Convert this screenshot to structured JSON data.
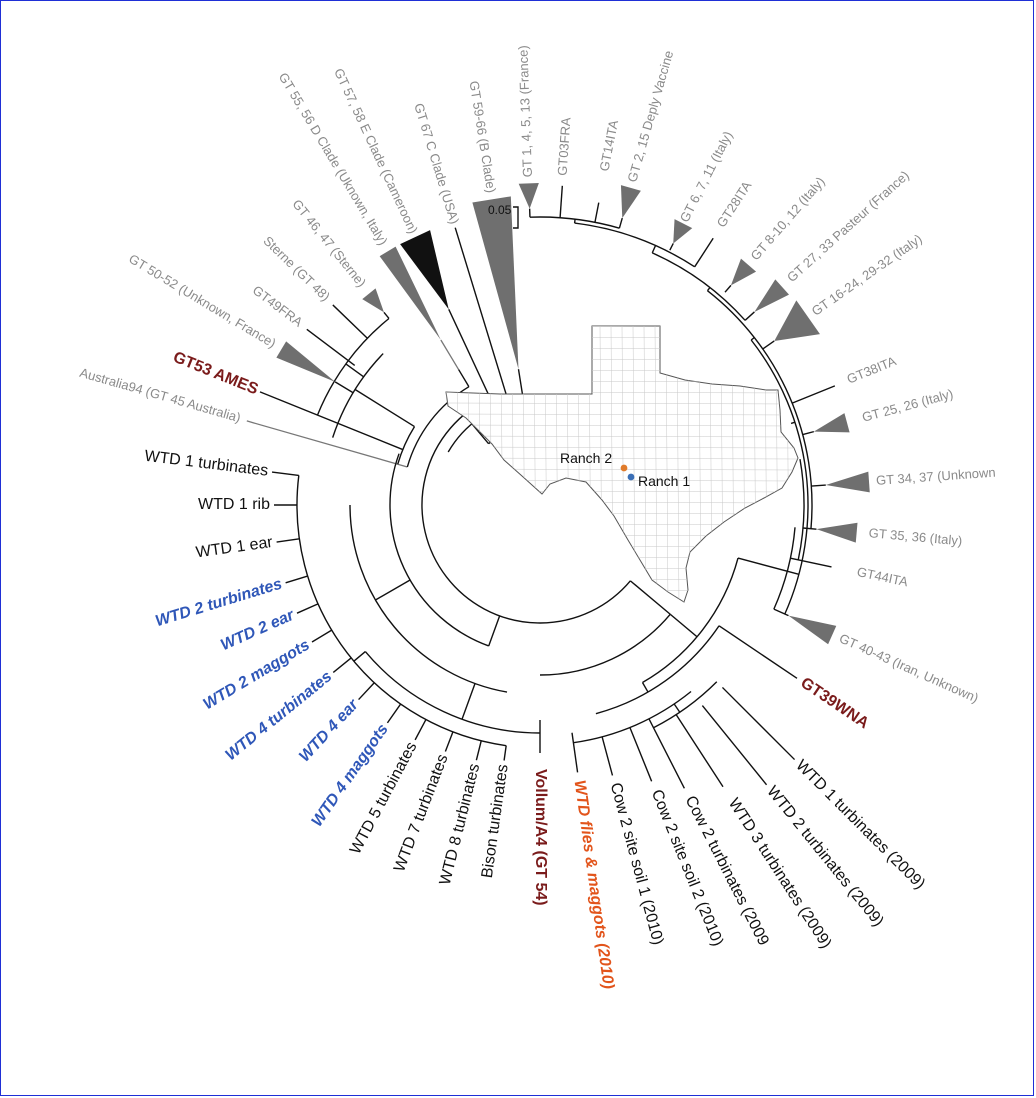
{
  "scale_bar": {
    "label": "0.05"
  },
  "map": {
    "ranch2_label": "Ranch 2",
    "ranch1_label": "Ranch 1",
    "ranch2_color": "#e07b2a",
    "ranch1_color": "#3b6fb6"
  },
  "colors": {
    "grey": "#8a8a8a",
    "black": "#111111",
    "blue": "#2f57b8",
    "dark_red": "#7a1b1b",
    "orange": "#e2541b"
  },
  "leaves": [
    {
      "text": "GT 1, 4, 5, 13 (France)",
      "style": "grey"
    },
    {
      "text": "GT03FRA",
      "style": "grey"
    },
    {
      "text": "GT14ITA",
      "style": "grey"
    },
    {
      "text": "GT 2, 15 Deply Vaccine",
      "style": "grey"
    },
    {
      "text": "GT 6, 7, 11 (Italy)",
      "style": "grey"
    },
    {
      "text": "GT28ITA",
      "style": "grey"
    },
    {
      "text": "GT 8-10, 12 (Italy)",
      "style": "grey"
    },
    {
      "text": "GT 27, 33 Pasteur (France)",
      "style": "grey"
    },
    {
      "text": "GT 16-24, 29-32 (Italy)",
      "style": "grey"
    },
    {
      "text": "GT38ITA",
      "style": "grey"
    },
    {
      "text": "GT 25, 26 (Italy)",
      "style": "grey"
    },
    {
      "text": "GT 34, 37 (Unknown",
      "style": "grey"
    },
    {
      "text": "GT 35, 36 (Italy)",
      "style": "grey"
    },
    {
      "text": "GT44ITA",
      "style": "grey"
    },
    {
      "text": "GT 40-43 (Iran, Unknown)",
      "style": "grey"
    },
    {
      "text": "GT39WNA",
      "style": "red"
    },
    {
      "text": "WTD 1 turbinates (2009)",
      "style": "black"
    },
    {
      "text": "WTD 2 turbinates (2009)",
      "style": "black"
    },
    {
      "text": "WTD 3 turbinates (2009)",
      "style": "black"
    },
    {
      "text": "Cow 2 turbinates (2009",
      "style": "black"
    },
    {
      "text": "Cow 2 site soil 2 (2010)",
      "style": "black"
    },
    {
      "text": "Cow 2 site soil 1 (2010)",
      "style": "black"
    },
    {
      "text": "WTD flies & maggots (2010)",
      "style": "orange"
    },
    {
      "text": "Vollum/A4 (GT 54)",
      "style": "red"
    },
    {
      "text": "Bison turbinates",
      "style": "black"
    },
    {
      "text": "WTD 8 turbinates",
      "style": "black"
    },
    {
      "text": "WTD 7 turbinates",
      "style": "black"
    },
    {
      "text": "WTD 5 turbinates",
      "style": "black"
    },
    {
      "text": "WTD 4 maggots",
      "style": "blue"
    },
    {
      "text": "WTD 4 ear",
      "style": "blue"
    },
    {
      "text": "WTD 4 turbinates",
      "style": "blue"
    },
    {
      "text": "WTD 2 maggots",
      "style": "blue"
    },
    {
      "text": "WTD 2 ear",
      "style": "blue"
    },
    {
      "text": "WTD 2 turbinates",
      "style": "blue"
    },
    {
      "text": "WTD 1 ear",
      "style": "black"
    },
    {
      "text": "WTD 1 rib",
      "style": "black"
    },
    {
      "text": "WTD 1 turbinates",
      "style": "black"
    },
    {
      "text": "Australia94 (GT 45 Australia)",
      "style": "grey"
    },
    {
      "text": "GT53 AMES",
      "style": "red"
    },
    {
      "text": "GT 50-52 (Unknown, France)",
      "style": "grey"
    },
    {
      "text": "GT49FRA",
      "style": "grey"
    },
    {
      "text": "Sterne (GT 48)",
      "style": "grey"
    },
    {
      "text": "GT 46, 47 (Sterne)",
      "style": "grey"
    },
    {
      "text": "GT 55, 56 D Clade (Uknown, Italy)",
      "style": "grey"
    },
    {
      "text": "GT 57, 58 E Clade (Cameroon)",
      "style": "grey"
    },
    {
      "text": "GT 67 C Clade (USA)",
      "style": "grey"
    },
    {
      "text": "GT 59-66 (B Clade)",
      "style": "grey"
    }
  ]
}
